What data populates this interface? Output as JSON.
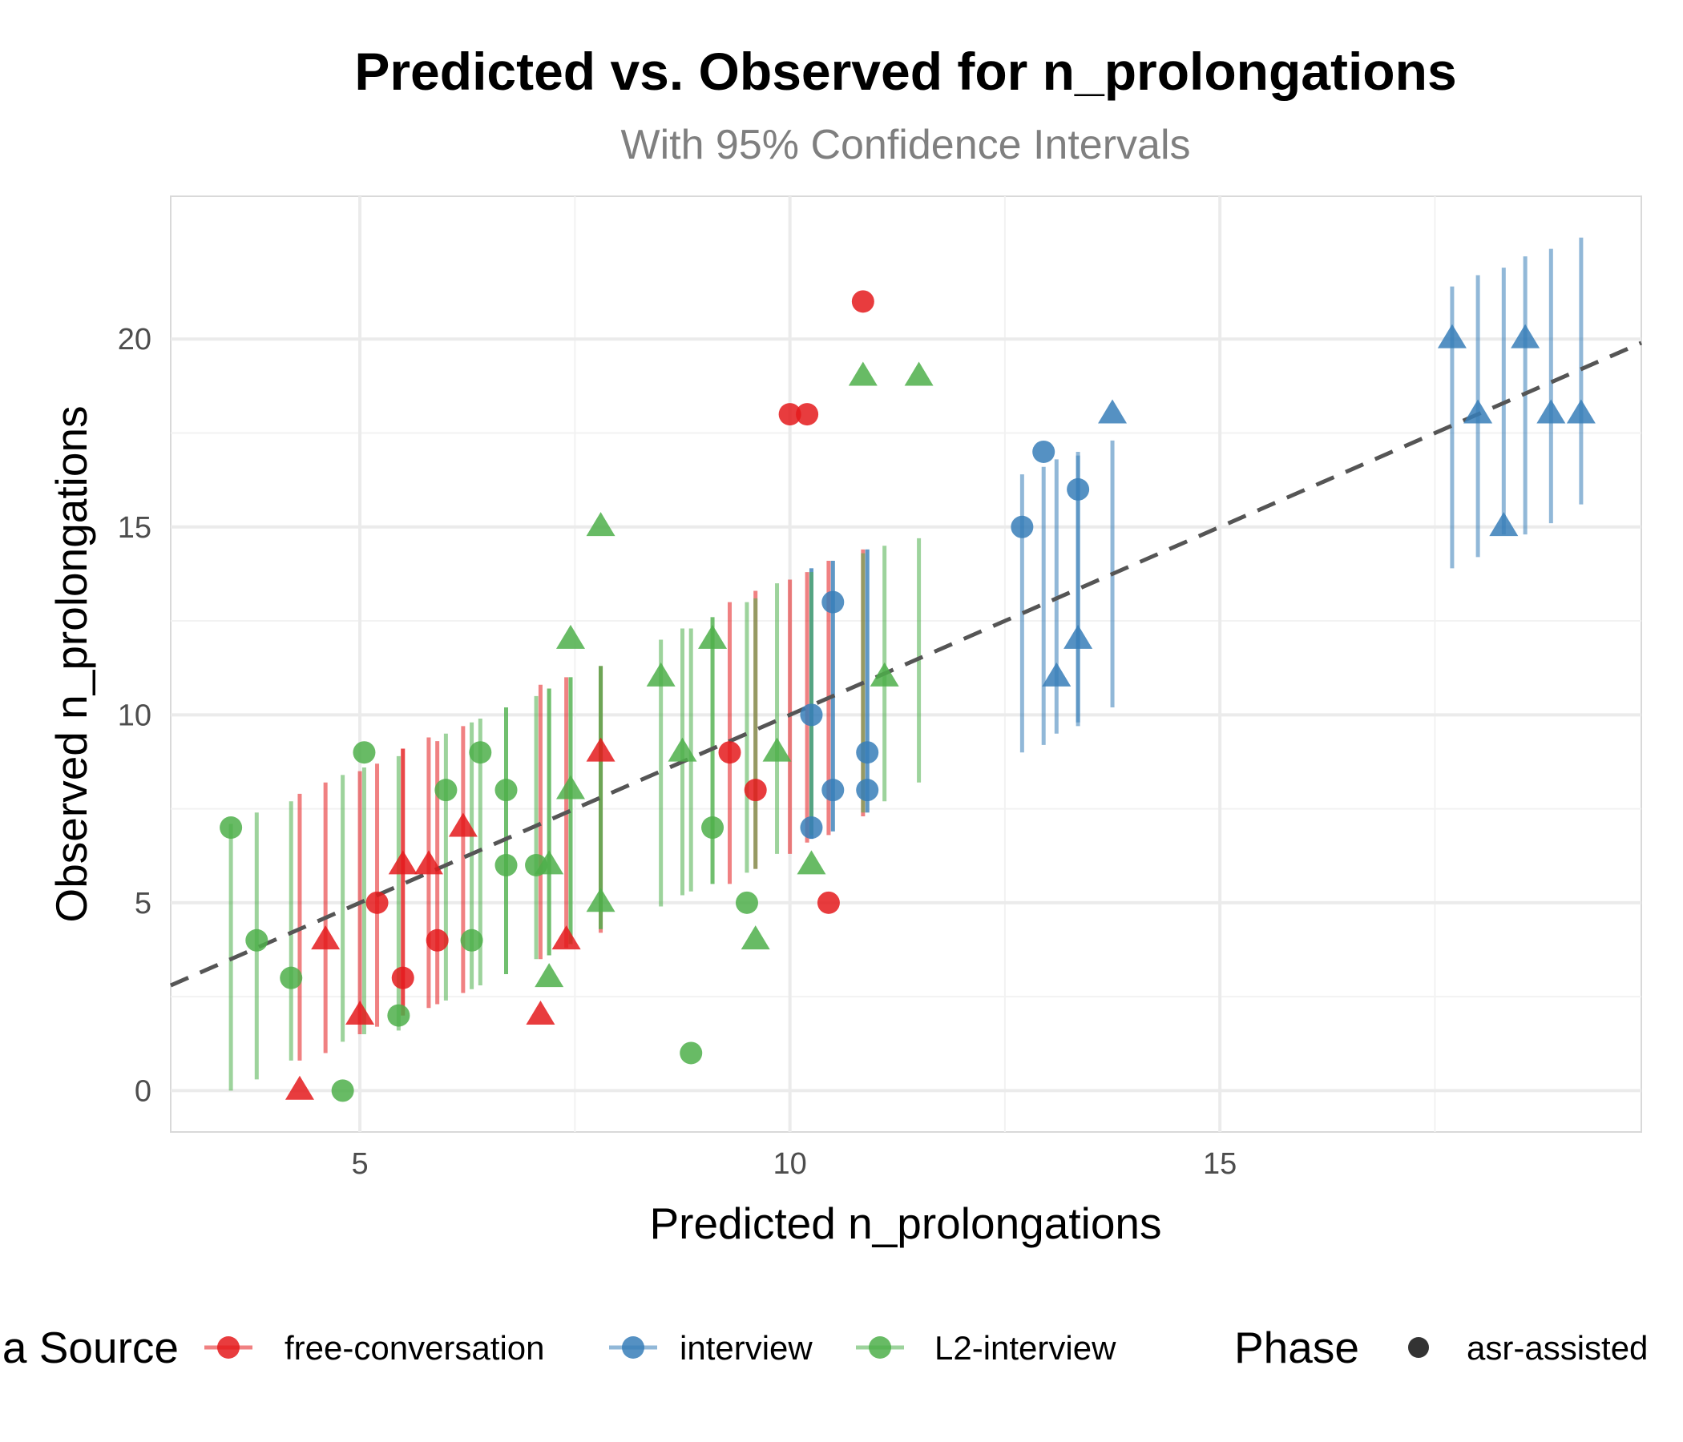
{
  "chart_data": {
    "type": "scatter",
    "title": "Predicted vs. Observed for n_prolongations",
    "subtitle": "With 95% Confidence Intervals",
    "xlabel": "Predicted n_prolongations",
    "ylabel": "Observed n_prolongations",
    "xlim": [
      2.8,
      19.9
    ],
    "ylim": [
      -1.1,
      23.8
    ],
    "x_ticks": [
      5,
      10,
      15
    ],
    "y_ticks": [
      0,
      5,
      10,
      15,
      20
    ],
    "grid": true,
    "reference_line": {
      "type": "identity",
      "style": "dashed",
      "color": "#555555"
    },
    "colors": {
      "free-conversation": "#e41a1c",
      "interview": "#377eb8",
      "L2-interview": "#4daf4a"
    },
    "legend": {
      "placement": "bottom",
      "color_title": "a Source",
      "color_entries": [
        "free-conversation",
        "interview",
        "L2-interview"
      ],
      "shape_title": "Phase",
      "shape_entries": [
        "asr-assisted"
      ]
    },
    "series": [
      {
        "name": "free-conversation",
        "points": [
          {
            "x": 4.3,
            "y": 0,
            "lo": 0.8,
            "hi": 7.9,
            "shape": "triangle"
          },
          {
            "x": 4.6,
            "y": 4,
            "lo": 1.0,
            "hi": 8.2,
            "shape": "triangle"
          },
          {
            "x": 5.0,
            "y": 2,
            "lo": 1.5,
            "hi": 8.5,
            "shape": "triangle"
          },
          {
            "x": 5.2,
            "y": 5,
            "lo": 1.7,
            "hi": 8.7,
            "shape": "circle"
          },
          {
            "x": 5.5,
            "y": 3,
            "lo": 2.0,
            "hi": 9.1,
            "shape": "circle"
          },
          {
            "x": 5.5,
            "y": 6,
            "lo": 2.0,
            "hi": 9.1,
            "shape": "triangle"
          },
          {
            "x": 5.8,
            "y": 6,
            "lo": 2.2,
            "hi": 9.4,
            "shape": "triangle"
          },
          {
            "x": 5.9,
            "y": 4,
            "lo": 2.3,
            "hi": 9.3,
            "shape": "circle"
          },
          {
            "x": 6.2,
            "y": 7,
            "lo": 2.6,
            "hi": 9.7,
            "shape": "triangle"
          },
          {
            "x": 7.1,
            "y": 2,
            "lo": 3.5,
            "hi": 10.8,
            "shape": "triangle"
          },
          {
            "x": 7.4,
            "y": 4,
            "lo": 3.8,
            "hi": 11.0,
            "shape": "triangle"
          },
          {
            "x": 7.8,
            "y": 9,
            "lo": 4.2,
            "hi": 11.3,
            "shape": "triangle"
          },
          {
            "x": 9.3,
            "y": 9,
            "lo": 5.5,
            "hi": 13.0,
            "shape": "circle"
          },
          {
            "x": 9.6,
            "y": 8,
            "lo": 5.9,
            "hi": 13.3,
            "shape": "circle"
          },
          {
            "x": 10.0,
            "y": 18,
            "lo": 6.3,
            "hi": 13.6,
            "shape": "circle"
          },
          {
            "x": 10.2,
            "y": 18,
            "lo": 6.6,
            "hi": 13.8,
            "shape": "circle"
          },
          {
            "x": 10.45,
            "y": 5,
            "lo": 6.8,
            "hi": 14.1,
            "shape": "circle"
          },
          {
            "x": 10.85,
            "y": 21,
            "lo": 7.3,
            "hi": 14.4,
            "shape": "circle"
          }
        ]
      },
      {
        "name": "interview",
        "points": [
          {
            "x": 10.25,
            "y": 7,
            "lo": 6.7,
            "hi": 13.9,
            "shape": "circle"
          },
          {
            "x": 10.25,
            "y": 10,
            "lo": 6.7,
            "hi": 13.9,
            "shape": "circle"
          },
          {
            "x": 10.5,
            "y": 13,
            "lo": 6.9,
            "hi": 14.1,
            "shape": "circle"
          },
          {
            "x": 10.5,
            "y": 8,
            "lo": 6.9,
            "hi": 14.1,
            "shape": "circle"
          },
          {
            "x": 10.9,
            "y": 9,
            "lo": 7.4,
            "hi": 14.4,
            "shape": "circle"
          },
          {
            "x": 10.9,
            "y": 8,
            "lo": 7.4,
            "hi": 14.4,
            "shape": "circle"
          },
          {
            "x": 12.7,
            "y": 15,
            "lo": 9.0,
            "hi": 16.4,
            "shape": "circle"
          },
          {
            "x": 12.95,
            "y": 17,
            "lo": 9.2,
            "hi": 16.6,
            "shape": "circle"
          },
          {
            "x": 13.1,
            "y": 11,
            "lo": 9.5,
            "hi": 16.8,
            "shape": "triangle"
          },
          {
            "x": 13.35,
            "y": 16,
            "lo": 9.7,
            "hi": 16.9,
            "shape": "circle"
          },
          {
            "x": 13.35,
            "y": 12,
            "lo": 9.8,
            "hi": 17.0,
            "shape": "triangle"
          },
          {
            "x": 13.75,
            "y": 18,
            "lo": 10.2,
            "hi": 17.3,
            "shape": "triangle"
          },
          {
            "x": 17.7,
            "y": 20,
            "lo": 13.9,
            "hi": 21.4,
            "shape": "triangle"
          },
          {
            "x": 18.0,
            "y": 18,
            "lo": 14.2,
            "hi": 21.7,
            "shape": "triangle"
          },
          {
            "x": 18.3,
            "y": 15,
            "lo": 14.8,
            "hi": 21.9,
            "shape": "triangle"
          },
          {
            "x": 18.55,
            "y": 20,
            "lo": 14.8,
            "hi": 22.2,
            "shape": "triangle"
          },
          {
            "x": 18.85,
            "y": 18,
            "lo": 15.1,
            "hi": 22.4,
            "shape": "triangle"
          },
          {
            "x": 19.2,
            "y": 18,
            "lo": 15.6,
            "hi": 22.7,
            "shape": "triangle"
          }
        ]
      },
      {
        "name": "L2-interview",
        "points": [
          {
            "x": 3.5,
            "y": 7,
            "lo": 0.0,
            "hi": 7.1,
            "shape": "circle"
          },
          {
            "x": 3.8,
            "y": 4,
            "lo": 0.3,
            "hi": 7.4,
            "shape": "circle"
          },
          {
            "x": 4.2,
            "y": 3,
            "lo": 0.8,
            "hi": 7.7,
            "shape": "circle"
          },
          {
            "x": 4.8,
            "y": 0,
            "lo": 1.3,
            "hi": 8.4,
            "shape": "circle"
          },
          {
            "x": 5.05,
            "y": 9,
            "lo": 1.5,
            "hi": 8.6,
            "shape": "circle"
          },
          {
            "x": 5.45,
            "y": 2,
            "lo": 1.6,
            "hi": 8.9,
            "shape": "circle"
          },
          {
            "x": 6.0,
            "y": 8,
            "lo": 2.4,
            "hi": 9.5,
            "shape": "circle"
          },
          {
            "x": 6.3,
            "y": 4,
            "lo": 2.7,
            "hi": 9.8,
            "shape": "circle"
          },
          {
            "x": 6.4,
            "y": 9,
            "lo": 2.8,
            "hi": 9.9,
            "shape": "circle"
          },
          {
            "x": 6.7,
            "y": 8,
            "lo": 3.1,
            "hi": 10.2,
            "shape": "circle"
          },
          {
            "x": 6.7,
            "y": 6,
            "lo": 3.1,
            "hi": 10.2,
            "shape": "circle"
          },
          {
            "x": 7.05,
            "y": 6,
            "lo": 3.5,
            "hi": 10.5,
            "shape": "circle"
          },
          {
            "x": 7.2,
            "y": 6,
            "lo": 3.6,
            "hi": 10.7,
            "shape": "triangle"
          },
          {
            "x": 7.2,
            "y": 3,
            "lo": 3.6,
            "hi": 10.7,
            "shape": "triangle"
          },
          {
            "x": 7.45,
            "y": 8,
            "lo": 3.9,
            "hi": 11.0,
            "shape": "triangle"
          },
          {
            "x": 7.45,
            "y": 12,
            "lo": 3.9,
            "hi": 11.0,
            "shape": "triangle"
          },
          {
            "x": 7.8,
            "y": 15,
            "lo": 4.3,
            "hi": 11.3,
            "shape": "triangle"
          },
          {
            "x": 7.8,
            "y": 5,
            "lo": 4.3,
            "hi": 11.3,
            "shape": "triangle"
          },
          {
            "x": 8.5,
            "y": 11,
            "lo": 4.9,
            "hi": 12.0,
            "shape": "triangle"
          },
          {
            "x": 8.75,
            "y": 9,
            "lo": 5.2,
            "hi": 12.3,
            "shape": "triangle"
          },
          {
            "x": 8.85,
            "y": 1,
            "lo": 5.3,
            "hi": 12.3,
            "shape": "circle"
          },
          {
            "x": 9.1,
            "y": 12,
            "lo": 5.5,
            "hi": 12.6,
            "shape": "triangle"
          },
          {
            "x": 9.1,
            "y": 7,
            "lo": 5.5,
            "hi": 12.6,
            "shape": "circle"
          },
          {
            "x": 9.5,
            "y": 5,
            "lo": 5.8,
            "hi": 13.0,
            "shape": "circle"
          },
          {
            "x": 9.6,
            "y": 4,
            "lo": 5.9,
            "hi": 13.1,
            "shape": "triangle"
          },
          {
            "x": 9.85,
            "y": 9,
            "lo": 6.3,
            "hi": 13.5,
            "shape": "triangle"
          },
          {
            "x": 10.25,
            "y": 6,
            "lo": 6.8,
            "hi": 13.8,
            "shape": "triangle"
          },
          {
            "x": 11.1,
            "y": 11,
            "lo": 7.7,
            "hi": 14.5,
            "shape": "triangle"
          },
          {
            "x": 11.5,
            "y": 19,
            "lo": 8.2,
            "hi": 14.7,
            "shape": "triangle"
          },
          {
            "x": 10.85,
            "y": 19,
            "lo": 7.4,
            "hi": 14.3,
            "shape": "triangle"
          }
        ]
      }
    ]
  }
}
